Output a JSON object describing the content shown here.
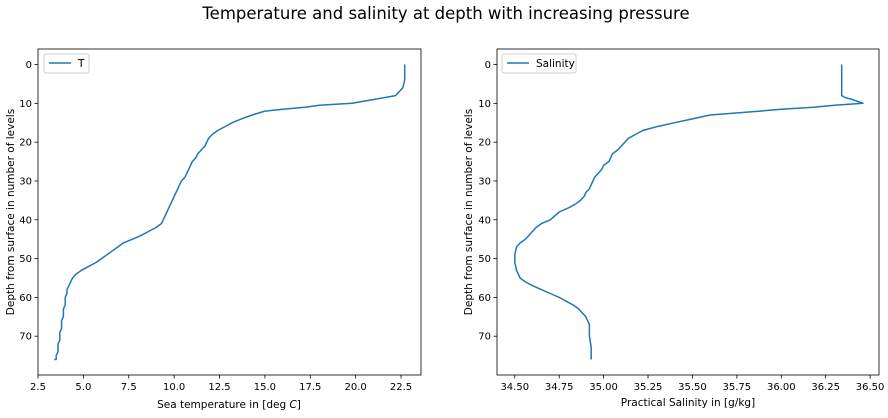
{
  "figure": {
    "suptitle": "Temperature and salinity at depth with increasing pressure"
  },
  "chart_data": [
    {
      "type": "line",
      "xlabel": "Sea temperature in [deg C]",
      "xlabel_prefix": "Sea temperature in [deg",
      "xlabel_unit": "C",
      "xlabel_suffix": "]",
      "ylabel": "Depth from surface in number of levels",
      "xlim": [
        2.5,
        23.6
      ],
      "ylim": [
        80,
        -4
      ],
      "y_inverted": true,
      "legend_loc": "upper left",
      "grid": false,
      "xticks": [
        "2.5",
        "5.0",
        "7.5",
        "10.0",
        "12.5",
        "15.0",
        "17.5",
        "20.0",
        "22.5"
      ],
      "xtick_values": [
        2.5,
        5.0,
        7.5,
        10.0,
        12.5,
        15.0,
        17.5,
        20.0,
        22.5
      ],
      "yticks": [
        "0",
        "10",
        "20",
        "30",
        "40",
        "50",
        "60",
        "70"
      ],
      "ytick_values": [
        0,
        10,
        20,
        30,
        40,
        50,
        60,
        70
      ],
      "series": [
        {
          "name": "T",
          "color": "#1f77b4",
          "x": [
            22.7,
            22.7,
            22.7,
            22.6,
            22.2,
            21.0,
            19.8,
            18.0,
            17.2,
            16.0,
            15.0,
            14.3,
            13.7,
            13.2,
            12.8,
            12.4,
            12.1,
            11.9,
            11.8,
            11.7,
            11.5,
            11.3,
            11.2,
            11.0,
            10.9,
            10.8,
            10.7,
            10.6,
            10.4,
            10.3,
            10.2,
            10.1,
            10.0,
            9.9,
            9.8,
            9.7,
            9.6,
            9.5,
            9.4,
            9.3,
            9.0,
            8.6,
            8.2,
            7.7,
            7.2,
            6.9,
            6.6,
            6.3,
            6.0,
            5.7,
            5.3,
            4.9,
            4.6,
            4.4,
            4.3,
            4.2,
            4.1,
            4.1,
            4.0,
            4.0,
            4.0,
            3.9,
            3.9,
            3.9,
            3.8,
            3.8,
            3.8,
            3.7,
            3.7,
            3.7,
            3.6,
            3.6,
            3.6,
            3.5,
            3.5,
            3.5,
            3.4
          ],
          "y": [
            0,
            2,
            4,
            6,
            8,
            9,
            10,
            10.5,
            11,
            11.5,
            12,
            13,
            14,
            15,
            16,
            17,
            18,
            19,
            20,
            21,
            22,
            23,
            24,
            25,
            26,
            27,
            28,
            29,
            30,
            31,
            32,
            33,
            34,
            35,
            36,
            37,
            38,
            39,
            40,
            41,
            42,
            43,
            44,
            45,
            46,
            47,
            48,
            49,
            50,
            51,
            52,
            53,
            54,
            55,
            56,
            57,
            58,
            59,
            60,
            61,
            62,
            63,
            64,
            65,
            66,
            67,
            68,
            69,
            70,
            71,
            72,
            73,
            74,
            75,
            76,
            76,
            76
          ]
        }
      ]
    },
    {
      "type": "line",
      "xlabel": "Practical Salinity in [g/kg]",
      "ylabel": "Depth from surface in number of levels",
      "xlim": [
        34.4,
        36.55
      ],
      "ylim": [
        80,
        -4
      ],
      "y_inverted": true,
      "legend_loc": "upper left",
      "grid": false,
      "xticks": [
        "34.50",
        "34.75",
        "35.00",
        "35.25",
        "35.50",
        "35.75",
        "36.00",
        "36.25",
        "36.50"
      ],
      "xtick_values": [
        34.5,
        34.75,
        35.0,
        35.25,
        35.5,
        35.75,
        36.0,
        36.25,
        36.5
      ],
      "yticks": [
        "0",
        "10",
        "20",
        "30",
        "40",
        "50",
        "60",
        "70"
      ],
      "ytick_values": [
        0,
        10,
        20,
        30,
        40,
        50,
        60,
        70
      ],
      "series": [
        {
          "name": "Salinity",
          "color": "#1f77b4",
          "x": [
            36.34,
            36.34,
            36.34,
            36.34,
            36.34,
            36.36,
            36.4,
            36.46,
            36.3,
            36.18,
            36.0,
            35.88,
            35.6,
            35.5,
            35.4,
            35.3,
            35.22,
            35.18,
            35.14,
            35.12,
            35.1,
            35.08,
            35.05,
            35.03,
            35.0,
            34.99,
            34.97,
            34.95,
            34.94,
            34.93,
            34.92,
            34.9,
            34.89,
            34.87,
            34.84,
            34.8,
            34.75,
            34.7,
            34.65,
            34.62,
            34.6,
            34.58,
            34.56,
            34.53,
            34.51,
            34.5,
            34.5,
            34.51,
            34.53,
            34.56,
            34.6,
            34.65,
            34.7,
            34.75,
            34.79,
            34.83,
            34.86,
            34.88,
            34.9,
            34.91,
            34.92,
            34.92,
            34.93,
            34.93
          ],
          "y": [
            0,
            2,
            4,
            6,
            8,
            8.5,
            9,
            10,
            10.5,
            11,
            11.5,
            12,
            13,
            14,
            15,
            16,
            17,
            18,
            19,
            20,
            21,
            22,
            23,
            25,
            26,
            27,
            28,
            29,
            30,
            31,
            32,
            33,
            34,
            35,
            36,
            37,
            38,
            40,
            41,
            42,
            43,
            44,
            45,
            46,
            47,
            49,
            51,
            53,
            55,
            56,
            57,
            58,
            59,
            60,
            61,
            62,
            63,
            64,
            65,
            66,
            67,
            70,
            73,
            76
          ]
        }
      ]
    }
  ]
}
